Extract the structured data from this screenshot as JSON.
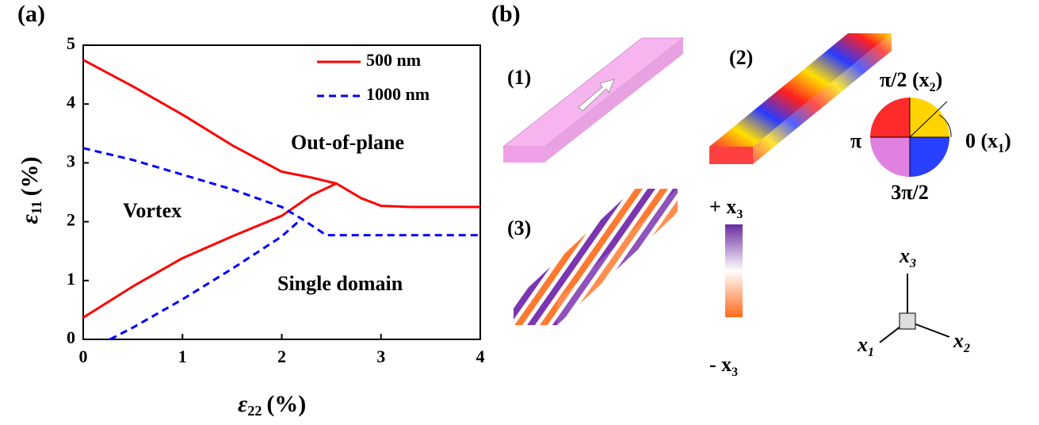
{
  "chart_data": {
    "type": "line",
    "panel_label": "(a)",
    "xlabel": {
      "symbol": "ε",
      "subscript": "22",
      "unit": "(%)"
    },
    "ylabel": {
      "symbol": "ε",
      "subscript": "11",
      "unit": "(%)"
    },
    "xlim": [
      0,
      4
    ],
    "ylim": [
      0,
      5
    ],
    "xticks": [
      0,
      1,
      2,
      3,
      4
    ],
    "yticks": [
      0,
      1,
      2,
      3,
      4,
      5
    ],
    "legend": "upper right",
    "series": [
      {
        "name": "500 nm",
        "color": "#ff0000",
        "dash": "solid",
        "x": [
          0,
          0.5,
          1,
          1.5,
          2,
          2.3,
          2.55,
          2.8,
          3,
          3.3,
          4,
          null,
          0,
          0.5,
          1,
          1.5,
          2,
          2.3,
          2.55
        ],
        "values": [
          4.75,
          4.3,
          3.82,
          3.3,
          2.85,
          2.75,
          2.65,
          2.4,
          2.27,
          2.25,
          2.25,
          null,
          0.37,
          0.9,
          1.38,
          1.75,
          2.1,
          2.45,
          2.65
        ]
      },
      {
        "name": "1000 nm",
        "color": "#0000ff",
        "dash": "dashed",
        "x": [
          0,
          0.5,
          1,
          1.5,
          2,
          2.2,
          2.45,
          3,
          4,
          null,
          0.27,
          0.5,
          1,
          1.5,
          2,
          2.2
        ],
        "values": [
          3.25,
          3.05,
          2.8,
          2.55,
          2.25,
          2.05,
          1.77,
          1.77,
          1.77,
          null,
          0,
          0.2,
          0.68,
          1.2,
          1.75,
          2.05
        ]
      }
    ],
    "annotations": [
      "Out-of-plane",
      "Vortex",
      "Single domain"
    ]
  },
  "panel_b": {
    "label": "(b)",
    "items": [
      "(1)",
      "(2)",
      "(3)"
    ],
    "wheel": {
      "top": "π/2 (x",
      "top_sub": "2",
      "left": "π",
      "right": "0 (x",
      "right_sub": "1",
      "bottom": "3π/2"
    },
    "colorbar": {
      "plus": "+ x",
      "minus": "- x",
      "sub": "3"
    },
    "axes": {
      "a": "x",
      "a_sub": "3",
      "b": "x",
      "b_sub": "1",
      "c": "x",
      "c_sub": "2"
    }
  }
}
